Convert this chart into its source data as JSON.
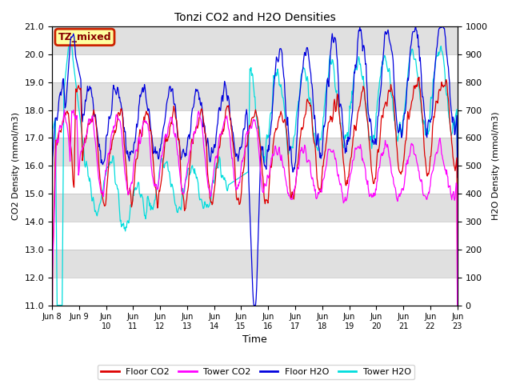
{
  "title": "Tonzi CO2 and H2O Densities",
  "xlabel": "Time",
  "ylabel_left": "CO2 Density (mmol/m3)",
  "ylabel_right": "H2O Density (mmol/m3)",
  "ylim_left": [
    11.0,
    21.0
  ],
  "ylim_right": [
    0,
    1000
  ],
  "yticks_left": [
    11.0,
    12.0,
    13.0,
    14.0,
    15.0,
    16.0,
    17.0,
    18.0,
    19.0,
    20.0,
    21.0
  ],
  "yticks_right": [
    0,
    100,
    200,
    300,
    400,
    500,
    600,
    700,
    800,
    900,
    1000
  ],
  "xtick_labels": [
    "Jun 8",
    "Jun 9",
    "Jun\n10",
    "Jun\n11",
    "Jun\n12",
    "Jun\n13",
    "Jun\n14",
    "Jun\n15",
    "Jun\n16",
    "Jun\n17",
    "Jun\n18",
    "Jun\n19",
    "Jun\n20",
    "Jun\n21",
    "Jun\n22",
    "Jun\n23"
  ],
  "label_box_text": "TZ_mixed",
  "label_box_bg": "#FFFFA0",
  "label_box_edge": "#CC2200",
  "colors": {
    "floor_co2": "#DD0000",
    "tower_co2": "#FF00FF",
    "floor_h2o": "#0000DD",
    "tower_h2o": "#00DDDD"
  },
  "legend_labels": [
    "Floor CO2",
    "Tower CO2",
    "Floor H2O",
    "Tower H2O"
  ],
  "plot_bg": "#E8E8E8",
  "band_color_dark": "#D0D0D0",
  "band_color_light": "#EBEBEB"
}
